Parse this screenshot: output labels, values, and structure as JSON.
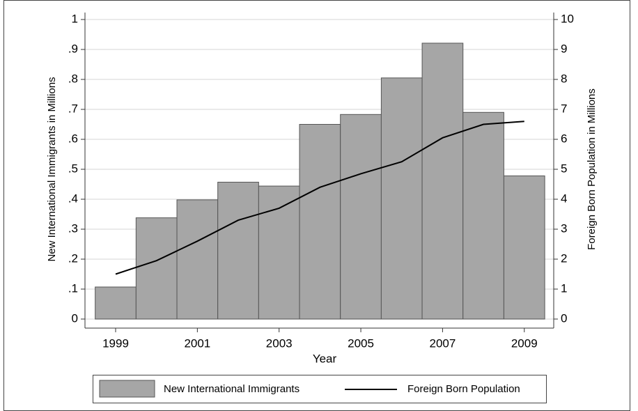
{
  "chart_data": {
    "type": "bar",
    "x": [
      1999,
      2000,
      2001,
      2002,
      2003,
      2004,
      2005,
      2006,
      2007,
      2008,
      2009
    ],
    "xlim": [
      1998.25,
      2009.72
    ],
    "xticks": [
      1999,
      2001,
      2003,
      2005,
      2007,
      2009
    ],
    "x_label": "Year",
    "y_label": "New International Immigrants in Millions",
    "y2_label": "Foreign Born Population in Millions",
    "ylim": [
      0,
      1
    ],
    "yticks": [
      0,
      {
        "value": 0.1,
        "label": ".1"
      },
      {
        "value": 0.2,
        "label": ".2"
      },
      {
        "value": 0.3,
        "label": ".3"
      },
      {
        "value": 0.4,
        "label": ".4"
      },
      {
        "value": 0.5,
        "label": ".5"
      },
      {
        "value": 0.6,
        "label": ".6"
      },
      {
        "value": 0.7,
        "label": ".7"
      },
      {
        "value": 0.8,
        "label": ".8"
      },
      {
        "value": 0.9,
        "label": ".9"
      },
      1
    ],
    "y2lim": [
      0,
      10
    ],
    "y2ticks": [
      0,
      1,
      2,
      3,
      4,
      5,
      6,
      7,
      8,
      9,
      10
    ],
    "grid": true,
    "legend": "bottom",
    "series": [
      {
        "name": "New International Immigrants",
        "type": "bar",
        "color": "#a6a6a6",
        "axis": "y",
        "values": [
          0.107,
          0.338,
          0.398,
          0.457,
          0.444,
          0.65,
          0.683,
          0.805,
          0.921,
          0.69,
          0.478
        ]
      },
      {
        "name": "Foreign Born Population",
        "type": "line",
        "color": "#000000",
        "axis": "y2",
        "values": [
          1.5,
          1.95,
          2.6,
          3.3,
          3.7,
          4.4,
          4.85,
          5.25,
          6.05,
          6.5,
          6.6
        ]
      }
    ]
  }
}
